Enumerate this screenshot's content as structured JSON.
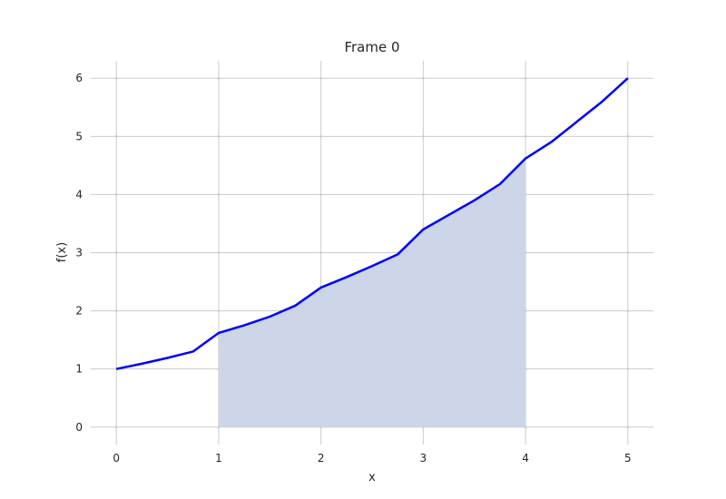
{
  "chart_data": {
    "type": "area",
    "title": "Frame 0",
    "xlabel": "x",
    "ylabel": "f(x)",
    "xlim": [
      -0.25,
      5.25
    ],
    "ylim": [
      -0.3,
      6.3
    ],
    "xticks": [
      0,
      1,
      2,
      3,
      4,
      5
    ],
    "yticks": [
      0,
      1,
      2,
      3,
      4,
      5,
      6
    ],
    "grid": true,
    "line_color": "#0000ff",
    "fill_color": "#c9d4e7",
    "series": [
      {
        "x": [
          0,
          0.25,
          0.5,
          0.75,
          1,
          1.25,
          1.5,
          1.75,
          2,
          2.25,
          2.5,
          2.75,
          3,
          3.25,
          3.5,
          3.75,
          4,
          4.25,
          4.5,
          4.75,
          5
        ],
        "y": [
          1.0,
          1.09,
          1.19,
          1.3,
          1.62,
          1.75,
          1.9,
          2.09,
          2.4,
          2.58,
          2.77,
          2.97,
          3.4,
          3.65,
          3.9,
          4.18,
          4.62,
          4.9,
          5.25,
          5.6,
          6.0
        ]
      }
    ],
    "shaded_region": {
      "x_start": 1,
      "x_end": 4
    }
  }
}
